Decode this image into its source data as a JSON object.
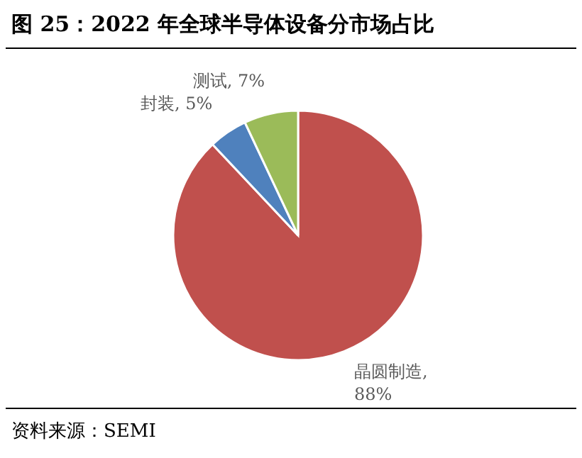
{
  "chart_data": {
    "type": "pie",
    "title": "图 25：2022 年全球半导体设备分市场占比",
    "categories": [
      "晶圆制造",
      "封装",
      "测试"
    ],
    "values": [
      88,
      5,
      7
    ],
    "colors": [
      "#c0504d",
      "#4f81bd",
      "#9bbb59"
    ],
    "value_labels": [
      ", 88%",
      ", 5%",
      ", 7%"
    ],
    "annotations": [
      "资料来源：SEMI"
    ]
  }
}
